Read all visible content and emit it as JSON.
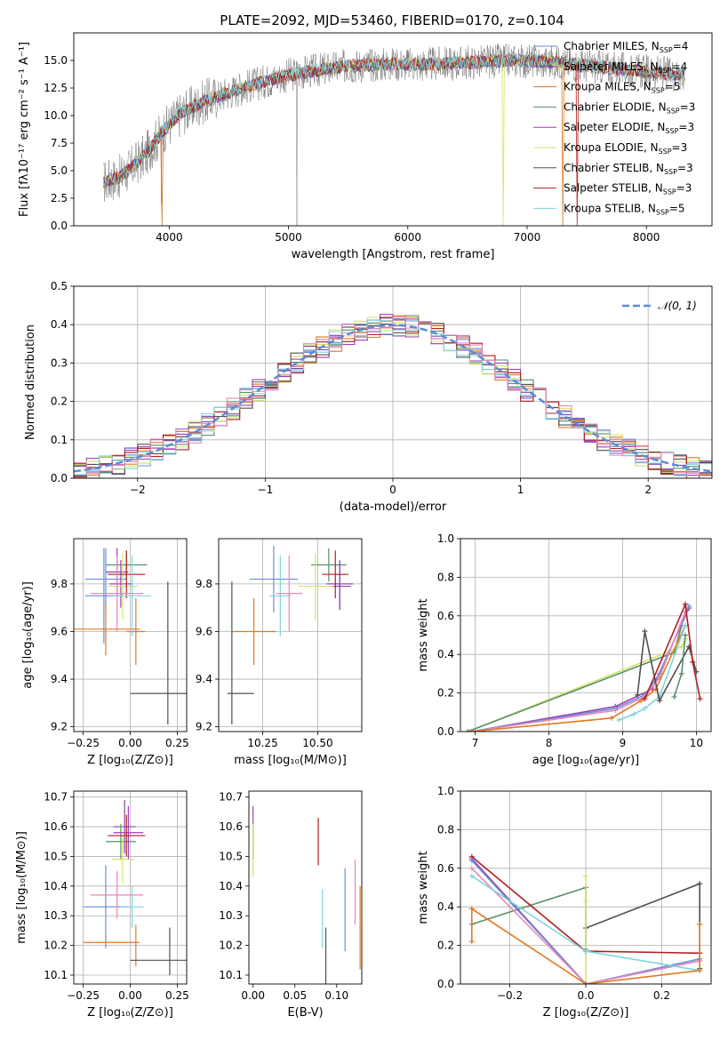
{
  "colors": {
    "chabrier_miles": "#6a8fd4",
    "salpeter_miles": "#8a3fa6",
    "kroupa_miles": "#e07a1f",
    "chabrier_elodie": "#5a8f68",
    "salpeter_elodie": "#9b3fb5",
    "kroupa_elodie": "#d4e36b",
    "chabrier_stelib": "#505050",
    "salpeter_stelib": "#b21e22",
    "kroupa_stelib": "#7fd4dc",
    "pink": "#e889b8",
    "normal": "#5b8bd6",
    "grid": "#b0b0b0"
  },
  "chart_data": [
    {
      "id": "spectrum",
      "type": "line",
      "title": "PLATE=2092, MJD=53460, FIBERID=0170, z=0.104",
      "xlabel": "wavelength [Angstrom, rest frame]",
      "ylabel": "Flux [fλ10⁻¹⁷ erg cm⁻² s⁻¹ A⁻¹]",
      "xlim": [
        3200,
        8550
      ],
      "ylim": [
        0,
        17.5
      ],
      "xticks": [
        "4000",
        "5000",
        "6000",
        "7000",
        "8000"
      ],
      "yticks": [
        "0.0",
        "2.5",
        "5.0",
        "7.5",
        "10.0",
        "12.5",
        "15.0"
      ],
      "grid": false,
      "legend_position": "right",
      "continuum": {
        "x": [
          3400,
          3600,
          3800,
          3950,
          4100,
          4300,
          4500,
          4700,
          4900,
          5100,
          5300,
          5500,
          5700,
          5900,
          6100,
          6300,
          6500,
          6700,
          6900,
          7100,
          7300,
          7500,
          7700,
          7900,
          8100,
          8300
        ],
        "y": [
          3.8,
          4.5,
          6.4,
          8.6,
          10.2,
          11.3,
          12.1,
          12.8,
          13.4,
          13.9,
          14.2,
          14.5,
          14.6,
          14.7,
          14.6,
          14.7,
          14.8,
          14.9,
          15.0,
          14.9,
          14.8,
          14.5,
          14.3,
          14.1,
          13.9,
          13.7
        ]
      },
      "series": [
        {
          "name": "Chabrier MILES, N$_{SSP}$=4",
          "legend_main": "Chabrier MILES, N",
          "legend_sub": "SSP",
          "legend_end": "=4",
          "color_key": "chabrier_miles"
        },
        {
          "name": "Salpeter MILES, N$_{SSP}$=4",
          "legend_main": "Salpeter MILES, N",
          "legend_sub": "SSP",
          "legend_end": "=4",
          "color_key": "salpeter_miles"
        },
        {
          "name": "Kroupa MILES, N$_{SSP}$=5",
          "legend_main": "Kroupa MILES, N",
          "legend_sub": "SSP",
          "legend_end": "=5",
          "color_key": "kroupa_miles"
        },
        {
          "name": "Chabrier ELODIE, N$_{SSP}$=3",
          "legend_main": "Chabrier ELODIE, N",
          "legend_sub": "SSP",
          "legend_end": "=3",
          "color_key": "chabrier_elodie"
        },
        {
          "name": "Salpeter ELODIE, N$_{SSP}$=3",
          "legend_main": "Salpeter ELODIE, N",
          "legend_sub": "SSP",
          "legend_end": "=3",
          "color_key": "salpeter_elodie"
        },
        {
          "name": "Kroupa ELODIE, N$_{SSP}$=3",
          "legend_main": "Kroupa ELODIE, N",
          "legend_sub": "SSP",
          "legend_end": "=3",
          "color_key": "kroupa_elodie"
        },
        {
          "name": "Chabrier STELIB, N$_{SSP}$=3",
          "legend_main": "Chabrier STELIB, N",
          "legend_sub": "SSP",
          "legend_end": "=3",
          "color_key": "chabrier_stelib"
        },
        {
          "name": "Salpeter STELIB, N$_{SSP}$=3",
          "legend_main": "Salpeter STELIB, N",
          "legend_sub": "SSP",
          "legend_end": "=3",
          "color_key": "salpeter_stelib"
        },
        {
          "name": "Kroupa STELIB, N$_{SSP}$=5",
          "legend_main": "Kroupa STELIB, N",
          "legend_sub": "SSP",
          "legend_end": "=5",
          "color_key": "kroupa_stelib"
        }
      ]
    },
    {
      "id": "residuals",
      "type": "line",
      "xlabel": "(data-model)/error",
      "ylabel": "Normed distribution",
      "xlim": [
        -2.5,
        2.5
      ],
      "ylim": [
        0,
        0.5
      ],
      "xticks": [
        "−2",
        "−1",
        "0",
        "1",
        "2"
      ],
      "yticks": [
        "0.0",
        "0.1",
        "0.2",
        "0.3",
        "0.4",
        "0.5"
      ],
      "grid": true,
      "legend_position": "top-right",
      "normal_label": "𝒩(0, 1)",
      "step_colors": [
        "chabrier_miles",
        "salpeter_miles",
        "kroupa_miles",
        "chabrier_elodie",
        "salpeter_elodie",
        "kroupa_elodie",
        "chabrier_stelib",
        "salpeter_stelib",
        "kroupa_stelib",
        "pink"
      ]
    },
    {
      "id": "z_age",
      "type": "scatter",
      "xlabel": "Z [log₁₀(Z/Z⊙)]",
      "ylabel": "age  [log₁₀(age/yr)]",
      "xlim": [
        -0.3,
        0.3
      ],
      "ylim": [
        9.18,
        9.99
      ],
      "xticks": [
        "−0.25",
        "0.00",
        "0.25"
      ],
      "yticks": [
        "9.2",
        "9.4",
        "9.6",
        "9.8"
      ],
      "grid": true,
      "points": [
        {
          "color_key": "chabrier_miles",
          "x": -0.13,
          "xerr": 0.11,
          "y": 9.82,
          "yerr": 0.13
        },
        {
          "color_key": "chabrier_miles",
          "x": -0.14,
          "xerr": 0.1,
          "y": 9.75,
          "yerr": 0.2
        },
        {
          "color_key": "salpeter_miles",
          "x": -0.07,
          "xerr": 0.06,
          "y": 9.85,
          "yerr": 0.1
        },
        {
          "color_key": "kroupa_miles",
          "x": -0.13,
          "xerr": 0.18,
          "y": 9.61,
          "yerr": 0.11
        },
        {
          "color_key": "kroupa_miles",
          "x": 0.03,
          "xerr": 0.05,
          "y": 9.6,
          "yerr": 0.14
        },
        {
          "color_key": "chabrier_elodie",
          "x": -0.02,
          "xerr": 0.11,
          "y": 9.88,
          "yerr": 0.06
        },
        {
          "color_key": "salpeter_elodie",
          "x": -0.05,
          "xerr": 0.06,
          "y": 9.8,
          "yerr": 0.1
        },
        {
          "color_key": "kroupa_elodie",
          "x": -0.04,
          "xerr": 0.08,
          "y": 9.79,
          "yerr": 0.14
        },
        {
          "color_key": "chabrier_stelib",
          "x": 0.15,
          "xerr": 0.15,
          "y": 9.34,
          "yerr": 0.0
        },
        {
          "color_key": "chabrier_stelib",
          "x": 0.2,
          "xerr": 0.0,
          "y": 9.51,
          "yerr": 0.3
        },
        {
          "color_key": "salpeter_stelib",
          "x": -0.02,
          "xerr": 0.1,
          "y": 9.84,
          "yerr": 0.1
        },
        {
          "color_key": "kroupa_stelib",
          "x": 0.01,
          "xerr": 0.1,
          "y": 9.75,
          "yerr": 0.17
        },
        {
          "color_key": "pink",
          "x": -0.07,
          "xerr": 0.14,
          "y": 9.76,
          "yerr": 0.16
        }
      ]
    },
    {
      "id": "mass_age",
      "type": "scatter",
      "xlabel": "mass [log₁₀(M/M⊙)]",
      "ylabel": "",
      "xlim": [
        10.05,
        10.7
      ],
      "ylim": [
        9.18,
        9.99
      ],
      "xticks": [
        "10.25",
        "10.50"
      ],
      "yticks": [
        "9.2",
        "9.4",
        "9.6",
        "9.8"
      ],
      "grid": true,
      "points": [
        {
          "color_key": "chabrier_miles",
          "x": 10.3,
          "xerr": 0.11,
          "y": 9.82,
          "yerr": 0.14
        },
        {
          "color_key": "salpeter_miles",
          "x": 10.6,
          "xerr": 0.05,
          "y": 9.79,
          "yerr": 0.1
        },
        {
          "color_key": "kroupa_miles",
          "x": 10.21,
          "xerr": 0.1,
          "y": 9.6,
          "yerr": 0.14
        },
        {
          "color_key": "chabrier_elodie",
          "x": 10.55,
          "xerr": 0.08,
          "y": 9.88,
          "yerr": 0.07
        },
        {
          "color_key": "salpeter_elodie",
          "x": 10.6,
          "xerr": 0.06,
          "y": 9.8,
          "yerr": 0.1
        },
        {
          "color_key": "kroupa_elodie",
          "x": 10.49,
          "xerr": 0.08,
          "y": 9.79,
          "yerr": 0.14
        },
        {
          "color_key": "chabrier_stelib",
          "x": 10.15,
          "xerr": 0.06,
          "y": 9.34,
          "yerr": 0.0
        },
        {
          "color_key": "chabrier_stelib",
          "x": 10.11,
          "xerr": 0.0,
          "y": 9.51,
          "yerr": 0.3
        },
        {
          "color_key": "salpeter_stelib",
          "x": 10.58,
          "xerr": 0.06,
          "y": 9.84,
          "yerr": 0.1
        },
        {
          "color_key": "kroupa_stelib",
          "x": 10.33,
          "xerr": 0.05,
          "y": 9.75,
          "yerr": 0.17
        },
        {
          "color_key": "pink",
          "x": 10.37,
          "xerr": 0.06,
          "y": 9.76,
          "yerr": 0.16
        }
      ]
    },
    {
      "id": "age_weight",
      "type": "line",
      "xlabel": "age  [log₁₀(age/yr)]",
      "ylabel": "mass weight",
      "xlim": [
        6.8,
        10.2
      ],
      "ylim": [
        0,
        1.0
      ],
      "xticks": [
        "7",
        "8",
        "9",
        "10"
      ],
      "yticks": [
        "0.0",
        "0.2",
        "0.4",
        "0.6",
        "0.8",
        "1.0"
      ],
      "grid": true,
      "series": [
        {
          "color_key": "kroupa_elodie",
          "x": [
            6.9,
            9.8,
            9.85
          ],
          "y": [
            0.0,
            0.44,
            0.48
          ]
        },
        {
          "color_key": "chabrier_elodie",
          "x": [
            6.9,
            9.7,
            9.8
          ],
          "y": [
            0.0,
            0.41,
            0.55
          ]
        },
        {
          "color_key": "salpeter_elodie",
          "x": [
            6.95,
            8.9,
            9.4,
            9.9
          ],
          "y": [
            0.0,
            0.13,
            0.22,
            0.64
          ]
        },
        {
          "color_key": "chabrier_miles",
          "x": [
            6.95,
            8.9,
            9.3,
            9.5,
            9.9
          ],
          "y": [
            0.0,
            0.12,
            0.19,
            0.3,
            0.65
          ]
        },
        {
          "color_key": "pink",
          "x": [
            6.95,
            8.9,
            9.3,
            9.5,
            9.85
          ],
          "y": [
            0.0,
            0.11,
            0.18,
            0.28,
            0.62
          ]
        },
        {
          "color_key": "kroupa_miles",
          "x": [
            6.95,
            8.85,
            9.25,
            9.45,
            9.85
          ],
          "y": [
            0.0,
            0.07,
            0.16,
            0.22,
            0.55
          ]
        },
        {
          "color_key": "kroupa_stelib",
          "x": [
            8.95,
            9.15,
            9.3,
            9.5,
            9.85
          ],
          "y": [
            0.06,
            0.09,
            0.12,
            0.18,
            0.55
          ]
        },
        {
          "color_key": "chabrier_stelib",
          "x": [
            9.2,
            9.3,
            9.5,
            9.9,
            10.0
          ],
          "y": [
            0.19,
            0.52,
            0.16,
            0.44,
            0.31
          ]
        },
        {
          "color_key": "salpeter_stelib",
          "x": [
            9.3,
            9.85,
            9.95,
            10.05
          ],
          "y": [
            0.17,
            0.66,
            0.36,
            0.17
          ]
        },
        {
          "color_key": "chabrier_elodie",
          "x": [
            9.7,
            9.8,
            9.85
          ],
          "y": [
            0.18,
            0.3,
            0.5
          ]
        }
      ]
    },
    {
      "id": "ebv_mass",
      "type": "scatter",
      "xlabel": "E(B-V)",
      "ylabel": "",
      "xlim": [
        -0.005,
        0.13
      ],
      "ylim": [
        10.07,
        10.72
      ],
      "xticks": [
        "0.00",
        "0.05",
        "0.10"
      ],
      "yticks": [
        "10.1",
        "10.2",
        "10.3",
        "10.4",
        "10.5",
        "10.6",
        "10.7"
      ],
      "grid": false,
      "points": [
        {
          "color_key": "salpeter_elodie",
          "x": 0.0,
          "xerr": 0,
          "y": 10.58,
          "yerr": 0.09
        },
        {
          "color_key": "kroupa_elodie",
          "x": 0.0,
          "xerr": 0,
          "y": 10.52,
          "yerr": 0.09
        },
        {
          "color_key": "salpeter_stelib",
          "x": 0.078,
          "xerr": 0,
          "y": 10.55,
          "yerr": 0.08
        },
        {
          "color_key": "kroupa_stelib",
          "x": 0.083,
          "xerr": 0,
          "y": 10.29,
          "yerr": 0.1
        },
        {
          "color_key": "chabrier_stelib",
          "x": 0.087,
          "xerr": 0,
          "y": 10.16,
          "yerr": 0.1
        },
        {
          "color_key": "chabrier_miles",
          "x": 0.11,
          "xerr": 0,
          "y": 10.32,
          "yerr": 0.14
        },
        {
          "color_key": "pink",
          "x": 0.122,
          "xerr": 0,
          "y": 10.38,
          "yerr": 0.11
        },
        {
          "color_key": "kroupa_miles",
          "x": 0.128,
          "xerr": 0,
          "y": 10.26,
          "yerr": 0.14
        }
      ]
    },
    {
      "id": "z_mass",
      "type": "scatter",
      "xlabel": "Z [log₁₀(Z/Z⊙)]",
      "ylabel": "mass [log₁₀(M/M⊙)]",
      "xlim": [
        -0.3,
        0.3
      ],
      "ylim": [
        10.07,
        10.72
      ],
      "xticks": [
        "−0.25",
        "0.00",
        "0.25"
      ],
      "yticks": [
        "10.1",
        "10.2",
        "10.3",
        "10.4",
        "10.5",
        "10.6",
        "10.7"
      ],
      "grid": true,
      "points": [
        {
          "color_key": "chabrier_miles",
          "x": -0.13,
          "xerr": 0.12,
          "y": 10.33,
          "yerr": 0.14
        },
        {
          "color_key": "salpeter_miles",
          "x": -0.03,
          "xerr": 0.06,
          "y": 10.6,
          "yerr": 0.09
        },
        {
          "color_key": "kroupa_miles",
          "x": -0.1,
          "xerr": 0.15,
          "y": 10.21,
          "yerr": 0.0
        },
        {
          "color_key": "kroupa_miles",
          "x": 0.03,
          "xerr": 0.0,
          "y": 10.2,
          "yerr": 0.07
        },
        {
          "color_key": "chabrier_elodie",
          "x": -0.05,
          "xerr": 0.08,
          "y": 10.55,
          "yerr": 0.06
        },
        {
          "color_key": "salpeter_elodie",
          "x": -0.01,
          "xerr": 0.08,
          "y": 10.58,
          "yerr": 0.09
        },
        {
          "color_key": "kroupa_elodie",
          "x": -0.04,
          "xerr": 0.06,
          "y": 10.49,
          "yerr": 0.08
        },
        {
          "color_key": "chabrier_stelib",
          "x": 0.15,
          "xerr": 0.15,
          "y": 10.15,
          "yerr": 0.0
        },
        {
          "color_key": "chabrier_stelib",
          "x": 0.21,
          "xerr": 0.0,
          "y": 10.18,
          "yerr": 0.08
        },
        {
          "color_key": "salpeter_stelib",
          "x": -0.02,
          "xerr": 0.1,
          "y": 10.57,
          "yerr": 0.07
        },
        {
          "color_key": "kroupa_stelib",
          "x": 0.01,
          "xerr": 0.06,
          "y": 10.33,
          "yerr": 0.07
        },
        {
          "color_key": "pink",
          "x": -0.07,
          "xerr": 0.14,
          "y": 10.37,
          "yerr": 0.08
        }
      ]
    },
    {
      "id": "z_weight",
      "type": "line",
      "xlabel": "Z [log₁₀(Z/Z⊙)]",
      "ylabel": "mass weight",
      "xlim": [
        -0.33,
        0.33
      ],
      "ylim": [
        0,
        1.0
      ],
      "xticks": [
        "−0.2",
        "0.0",
        "0.2"
      ],
      "yticks": [
        "0.0",
        "0.2",
        "0.4",
        "0.6",
        "0.8",
        "1.0"
      ],
      "grid": true,
      "series": [
        {
          "color_key": "chabrier_stelib",
          "x": [
            0.0,
            0.3,
            0.3
          ],
          "y": [
            0.29,
            0.52,
            0.08
          ]
        },
        {
          "color_key": "chabrier_elodie",
          "x": [
            -0.3,
            0.0,
            0.0
          ],
          "y": [
            0.31,
            0.5,
            0.18
          ]
        },
        {
          "color_key": "kroupa_elodie",
          "x": [
            0.0,
            0.0,
            0.0
          ],
          "y": [
            0.56,
            0.43,
            0.0
          ]
        },
        {
          "color_key": "salpeter_stelib",
          "x": [
            -0.3,
            0.0,
            0.3
          ],
          "y": [
            0.66,
            0.17,
            0.16
          ]
        },
        {
          "color_key": "salpeter_elodie",
          "x": [
            -0.3,
            0.0,
            0.3
          ],
          "y": [
            0.65,
            0.0,
            0.12
          ]
        },
        {
          "color_key": "chabrier_miles",
          "x": [
            -0.3,
            0.0,
            0.3
          ],
          "y": [
            0.64,
            0.0,
            0.13
          ]
        },
        {
          "color_key": "pink",
          "x": [
            -0.3,
            0.0,
            0.3
          ],
          "y": [
            0.6,
            0.0,
            0.12
          ]
        },
        {
          "color_key": "kroupa_stelib",
          "x": [
            -0.3,
            0.0,
            0.3
          ],
          "y": [
            0.56,
            0.17,
            0.07
          ]
        },
        {
          "color_key": "kroupa_miles",
          "x": [
            -0.3,
            -0.3,
            0.0,
            0.3,
            0.3
          ],
          "y": [
            0.22,
            0.39,
            0.0,
            0.07,
            0.31
          ]
        }
      ]
    }
  ]
}
